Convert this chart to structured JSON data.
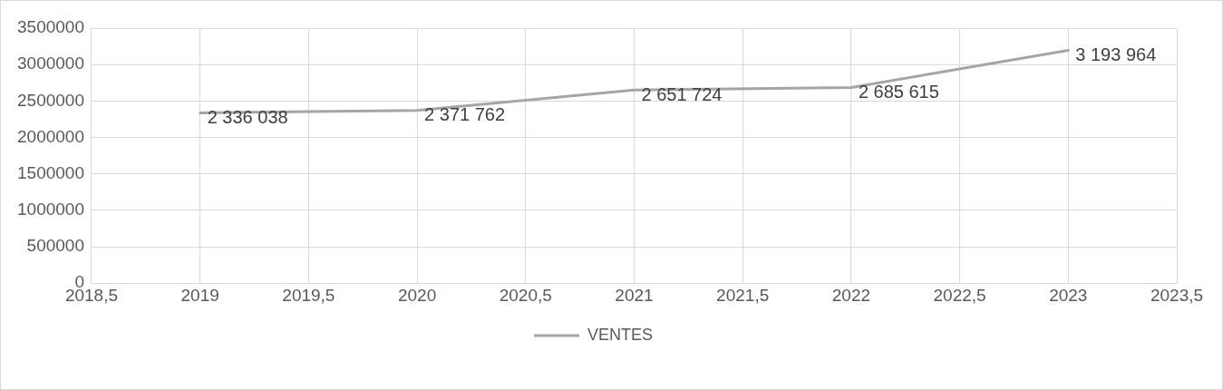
{
  "chart_data": {
    "type": "line",
    "x": [
      2019,
      2020,
      2021,
      2022,
      2023
    ],
    "series": [
      {
        "name": "VENTES",
        "color": "#a5a5a5",
        "values": [
          2336038,
          2371762,
          2651724,
          2685615,
          3193964
        ],
        "value_labels": [
          "2 336 038",
          "2 371 762",
          "2 651 724",
          "2 685 615",
          "3 193 964"
        ]
      }
    ],
    "xlim": [
      2018.5,
      2023.5
    ],
    "xticks": [
      {
        "value": 2018.5,
        "label": "2018,5"
      },
      2019,
      {
        "value": 2019.5,
        "label": "2019,5"
      },
      2020,
      {
        "value": 2020.5,
        "label": "2020,5"
      },
      2021,
      {
        "value": 2021.5,
        "label": "2021,5"
      },
      2022,
      {
        "value": 2022.5,
        "label": "2022,5"
      },
      2023,
      {
        "value": 2023.5,
        "label": "2023,5"
      }
    ],
    "ylim": [
      0,
      3500000
    ],
    "yticks": [
      0,
      500000,
      1000000,
      1500000,
      2000000,
      2500000,
      3000000,
      3500000
    ],
    "grid": true,
    "legend": "bottom",
    "marker": "none",
    "line_style": "solid"
  }
}
